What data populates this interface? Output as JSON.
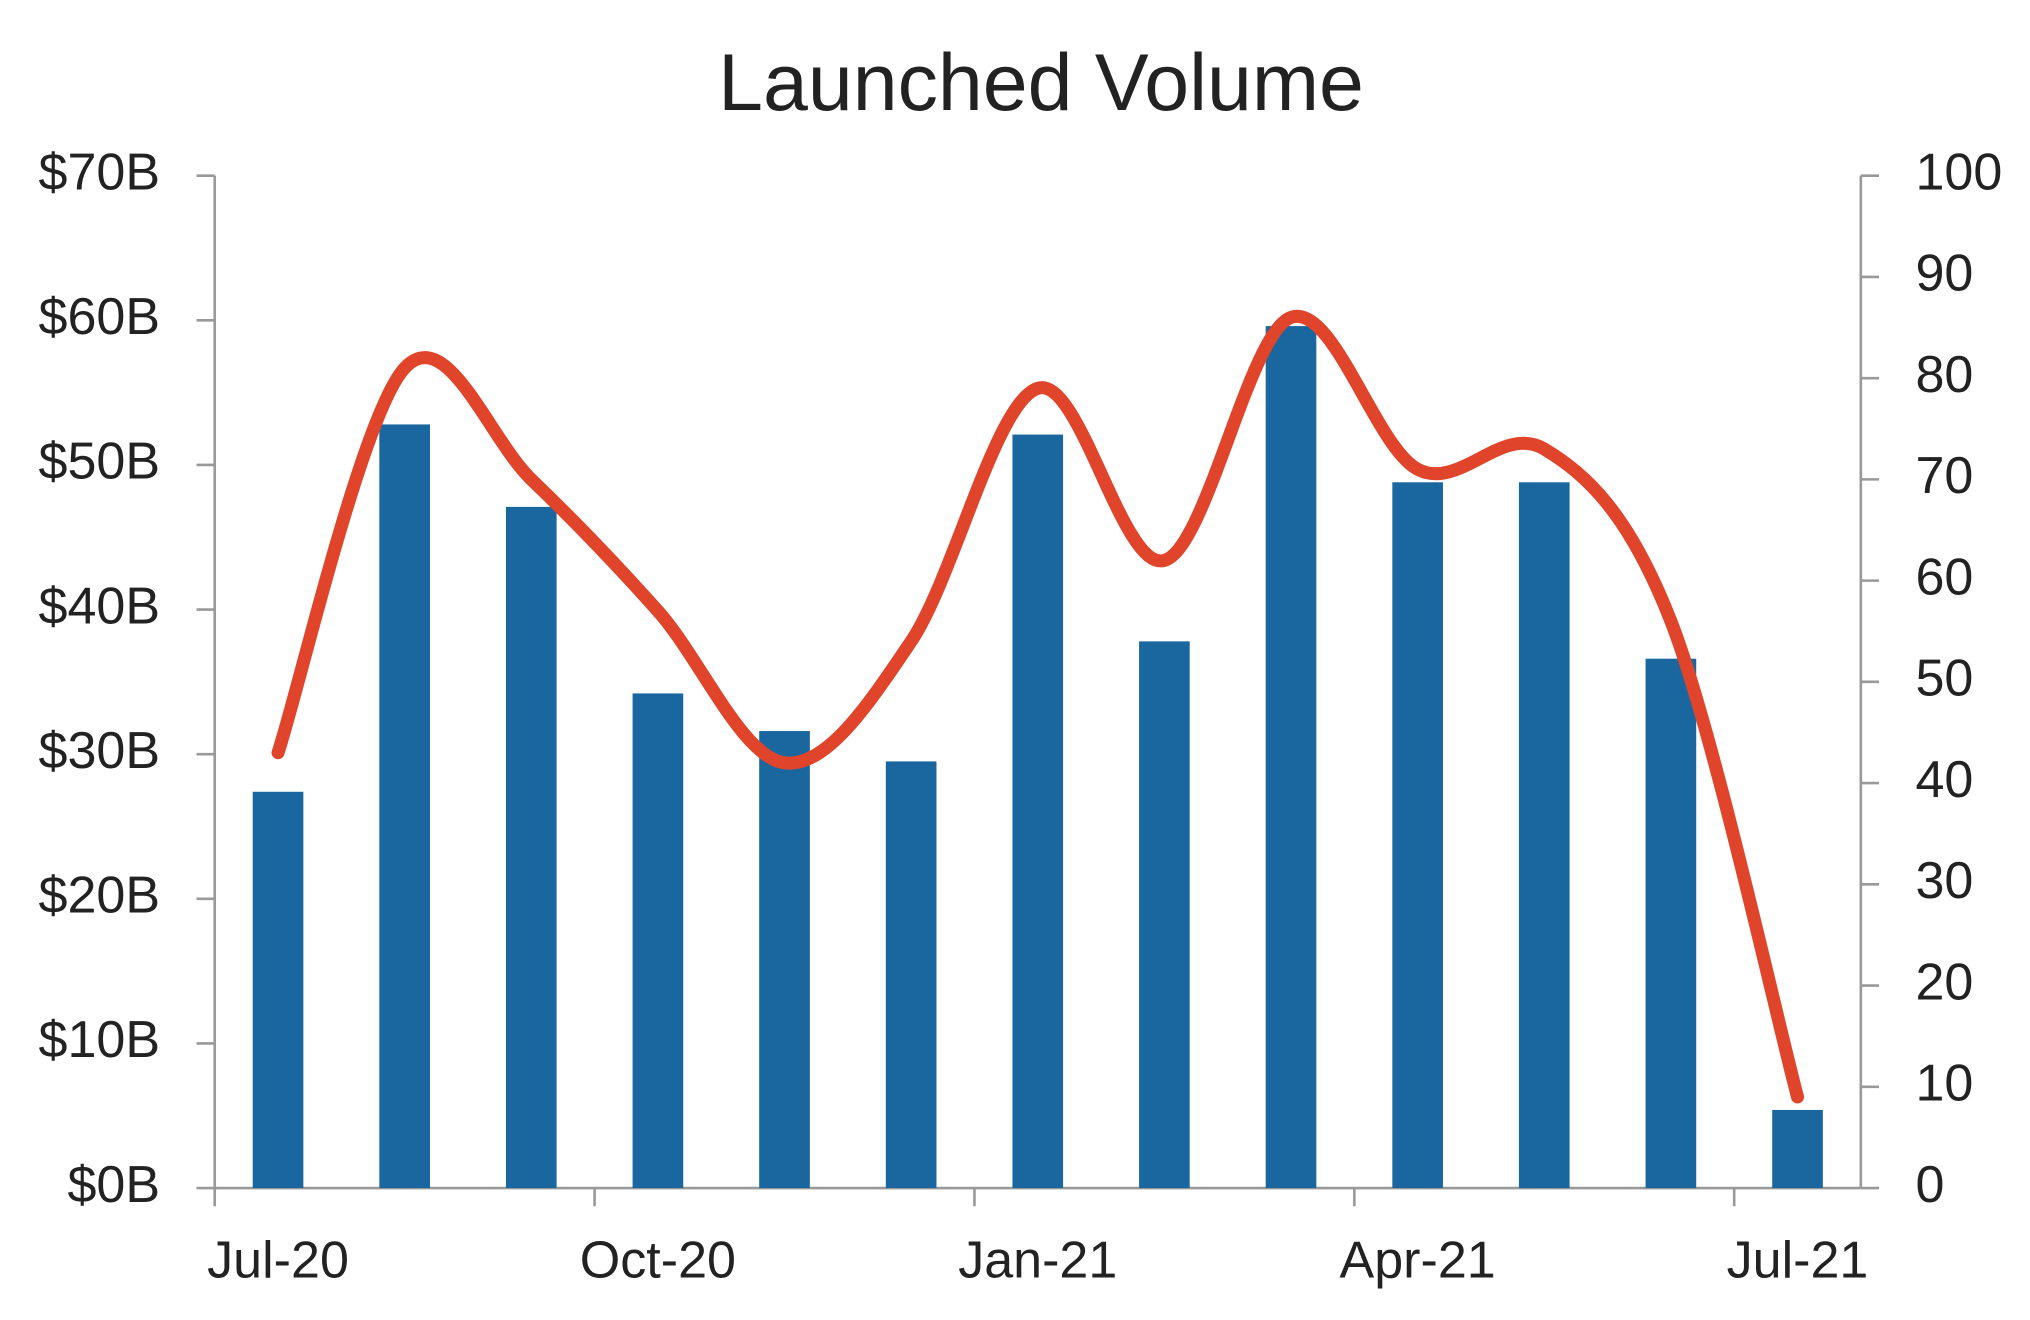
{
  "chart_data": {
    "type": "bar_line",
    "title": "Launched Volume",
    "categories": [
      "Jul-20",
      null,
      null,
      "Oct-20",
      null,
      null,
      "Jan-21",
      null,
      null,
      "Apr-21",
      null,
      null,
      "Jul-21"
    ],
    "series": [
      {
        "type": "bar",
        "color": "#1a67a0",
        "values": [
          27.4,
          52.8,
          47.1,
          34.2,
          31.6,
          29.5,
          52.1,
          37.8,
          59.6,
          48.8,
          48.8,
          36.6,
          5.4
        ]
      },
      {
        "type": "line",
        "axis": "y2",
        "color": "#e0442a",
        "values": [
          43,
          81,
          70,
          57,
          42,
          54,
          79,
          62,
          86,
          71,
          73,
          56,
          9
        ]
      }
    ],
    "ylim": [
      0,
      70
    ],
    "yticks": [
      {
        "value": 0,
        "label": "$0B"
      },
      {
        "value": 10,
        "label": "$10B"
      },
      {
        "value": 20,
        "label": "$20B"
      },
      {
        "value": 30,
        "label": "$30B"
      },
      {
        "value": 40,
        "label": "$40B"
      },
      {
        "value": 50,
        "label": "$50B"
      },
      {
        "value": 60,
        "label": "$60B"
      },
      {
        "value": 70,
        "label": "$70B"
      }
    ],
    "y2lim": [
      0,
      100
    ],
    "y2ticks": [
      0,
      10,
      20,
      30,
      40,
      50,
      60,
      70,
      80,
      90,
      100
    ]
  }
}
